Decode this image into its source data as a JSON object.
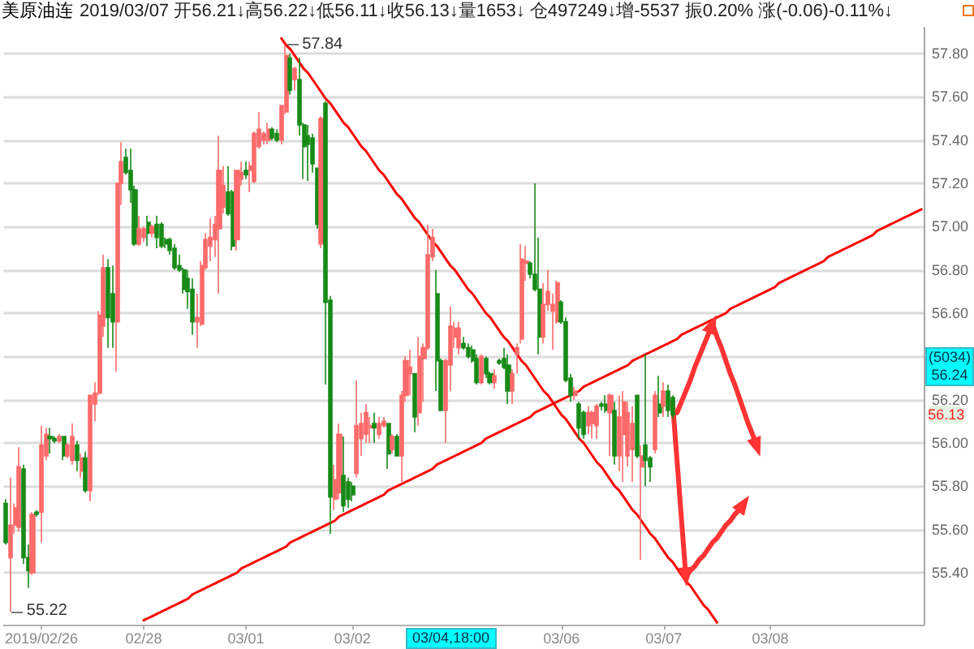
{
  "chart_data": {
    "type": "candlestick",
    "title": "美原油连",
    "subtitle": "2019/03/07 开56.21↓高56.22↓低56.11↓收56.13↓量1653↓ 仓497249↓增-5537 振0.20% 涨(-0.06)-0.11%↓",
    "categories": [
      null,
      null,
      null,
      null,
      null,
      null,
      null,
      null,
      "2019/02/26",
      null,
      null,
      null,
      null,
      null,
      null,
      null,
      null,
      null,
      null,
      null,
      null,
      null,
      null,
      null,
      null,
      null,
      null,
      null,
      null,
      null,
      null,
      "02/28",
      null,
      null,
      null,
      null,
      null,
      null,
      null,
      null,
      null,
      null,
      null,
      null,
      null,
      null,
      null,
      null,
      null,
      null,
      null,
      null,
      null,
      null,
      "03/01",
      null,
      null,
      null,
      null,
      null,
      null,
      null,
      null,
      null,
      null,
      null,
      null,
      null,
      null,
      null,
      null,
      null,
      null,
      null,
      null,
      null,
      null,
      null,
      "03/02",
      null,
      null,
      null,
      null,
      null,
      null,
      null,
      null,
      null,
      null,
      null,
      null,
      null,
      null,
      null,
      null,
      null,
      null,
      null,
      null,
      null,
      null,
      null,
      null,
      null,
      null,
      null,
      null,
      null,
      null,
      null,
      null,
      null,
      null,
      null,
      null,
      null,
      null,
      null,
      null,
      null,
      null,
      null,
      null,
      null,
      null,
      "03/06",
      null,
      null,
      null,
      null,
      null,
      null,
      null,
      null,
      null,
      null,
      null,
      null,
      null,
      null,
      null,
      null,
      null,
      null,
      null,
      null,
      null,
      null,
      "03/07",
      null,
      null,
      null,
      null,
      null,
      null,
      null,
      null,
      null,
      null,
      null,
      null,
      null,
      null,
      null,
      null,
      null,
      null,
      null,
      null,
      null,
      null,
      null,
      "03/08",
      null,
      null,
      null,
      null,
      null,
      null,
      null,
      null,
      null,
      null,
      null,
      null,
      null,
      null,
      null,
      null,
      null,
      null,
      null,
      null,
      null,
      null,
      null,
      null,
      null,
      null,
      null,
      null,
      null,
      null,
      null,
      null,
      null,
      null
    ],
    "ohlc": [
      [
        55.72,
        55.74,
        55.53,
        55.54
      ],
      [
        55.47,
        55.84,
        55.22,
        55.62
      ],
      [
        55.62,
        55.72,
        55.58,
        55.7
      ],
      [
        55.61,
        55.98,
        55.59,
        55.89
      ],
      [
        55.88,
        55.9,
        55.44,
        55.47
      ],
      [
        55.47,
        55.53,
        55.33,
        55.41
      ],
      [
        55.4,
        55.68,
        55.39,
        55.67
      ],
      [
        55.68,
        55.69,
        55.66,
        55.67
      ],
      [
        55.68,
        56.08,
        55.54,
        55.99
      ],
      [
        55.94,
        56.07,
        55.92,
        56.04
      ],
      [
        56.03,
        56.07,
        55.95,
        56.02
      ],
      [
        56.02,
        56.03,
        56.0,
        56.01
      ],
      [
        56.01,
        56.04,
        56.0,
        56.03
      ],
      [
        56.03,
        56.03,
        55.92,
        55.94
      ],
      [
        55.94,
        56.0,
        55.93,
        55.99
      ],
      [
        55.92,
        56.09,
        55.9,
        56.03
      ],
      [
        55.99,
        56.01,
        55.87,
        55.92
      ],
      [
        55.87,
        55.95,
        55.84,
        55.93
      ],
      [
        55.93,
        55.96,
        55.77,
        55.78
      ],
      [
        55.78,
        56.22,
        55.73,
        56.22
      ],
      [
        56.18,
        56.28,
        56.1,
        56.23
      ],
      [
        56.23,
        56.61,
        56.22,
        56.59
      ],
      [
        56.54,
        56.87,
        56.49,
        56.81
      ],
      [
        56.81,
        56.85,
        56.44,
        56.58
      ],
      [
        56.69,
        56.82,
        56.44,
        56.56
      ],
      [
        56.56,
        57.2,
        56.33,
        57.2
      ],
      [
        57.2,
        57.39,
        57.1,
        57.3
      ],
      [
        57.32,
        57.36,
        57.24,
        57.25
      ],
      [
        57.26,
        57.36,
        57.11,
        57.17
      ],
      [
        57.17,
        57.19,
        56.91,
        56.92
      ],
      [
        56.92,
        57.05,
        56.91,
        56.99
      ],
      [
        56.95,
        57.0,
        56.93,
        56.99
      ],
      [
        57.02,
        57.05,
        56.91,
        56.97
      ],
      [
        56.97,
        57.01,
        56.95,
        57.0
      ],
      [
        57.01,
        57.05,
        56.9,
        56.95
      ],
      [
        57.01,
        57.02,
        56.9,
        56.91
      ],
      [
        56.94,
        56.95,
        56.9,
        56.92
      ],
      [
        56.94,
        56.95,
        56.87,
        56.89
      ],
      [
        56.9,
        56.92,
        56.8,
        56.81
      ],
      [
        56.82,
        56.87,
        56.79,
        56.8
      ],
      [
        56.8,
        56.81,
        56.69,
        56.71
      ],
      [
        56.76,
        56.8,
        56.62,
        56.7
      ],
      [
        56.71,
        56.76,
        56.5,
        56.56
      ],
      [
        56.56,
        56.69,
        56.44,
        56.58
      ],
      [
        56.55,
        56.84,
        56.54,
        56.82
      ],
      [
        56.81,
        56.97,
        56.8,
        56.94
      ],
      [
        56.91,
        57.04,
        56.84,
        56.95
      ],
      [
        56.94,
        57.05,
        56.86,
        57.01
      ],
      [
        56.99,
        57.42,
        56.69,
        57.26
      ],
      [
        57.09,
        57.28,
        57.06,
        57.19
      ],
      [
        57.16,
        57.28,
        57.05,
        57.06
      ],
      [
        57.16,
        57.17,
        56.89,
        56.91
      ],
      [
        56.94,
        57.26,
        56.89,
        57.26
      ],
      [
        57.22,
        57.3,
        57.19,
        57.25
      ],
      [
        57.26,
        57.3,
        57.22,
        57.24
      ],
      [
        57.26,
        57.3,
        57.16,
        57.28
      ],
      [
        57.21,
        57.44,
        57.2,
        57.43
      ],
      [
        57.37,
        57.53,
        57.36,
        57.45
      ],
      [
        57.4,
        57.44,
        57.38,
        57.43
      ],
      [
        57.4,
        57.48,
        57.38,
        57.45
      ],
      [
        57.45,
        57.46,
        57.4,
        57.41
      ],
      [
        57.43,
        57.45,
        57.39,
        57.4
      ],
      [
        57.4,
        57.56,
        57.38,
        57.56
      ],
      [
        57.53,
        57.84,
        57.52,
        57.79
      ],
      [
        57.78,
        57.8,
        57.61,
        57.63
      ],
      [
        57.68,
        57.74,
        57.63,
        57.73
      ],
      [
        57.68,
        57.78,
        57.42,
        57.47
      ],
      [
        57.47,
        57.48,
        57.22,
        57.37
      ],
      [
        57.42,
        57.47,
        57.21,
        57.38
      ],
      [
        57.41,
        57.43,
        57.25,
        57.29
      ],
      [
        57.27,
        57.27,
        56.99,
        57.01
      ],
      [
        56.92,
        57.51,
        56.9,
        57.5
      ],
      [
        57.57,
        57.58,
        56.27,
        56.65
      ],
      [
        56.66,
        56.68,
        55.58,
        55.75
      ],
      [
        55.74,
        55.9,
        55.69,
        55.83
      ],
      [
        55.77,
        56.09,
        55.74,
        56.04
      ],
      [
        55.85,
        56.03,
        55.68,
        55.71
      ],
      [
        55.82,
        55.84,
        55.7,
        55.74
      ],
      [
        55.8,
        55.82,
        55.73,
        55.76
      ],
      [
        55.86,
        56.29,
        55.84,
        56.08
      ],
      [
        56.02,
        56.14,
        55.94,
        56.09
      ],
      [
        56.04,
        56.18,
        56.0,
        56.14
      ],
      [
        56.07,
        56.12,
        56.0,
        56.08
      ],
      [
        56.09,
        56.14,
        56.0,
        56.07
      ],
      [
        56.04,
        56.12,
        56.02,
        56.09
      ],
      [
        56.08,
        56.12,
        56.07,
        56.1
      ],
      [
        56.09,
        56.09,
        55.88,
        55.95
      ],
      [
        55.97,
        56.04,
        55.95,
        56.03
      ],
      [
        56.03,
        56.04,
        55.94,
        55.94
      ],
      [
        55.94,
        56.24,
        55.82,
        56.22
      ],
      [
        56.22,
        56.4,
        56.19,
        56.38
      ],
      [
        56.32,
        56.43,
        56.22,
        56.35
      ],
      [
        56.32,
        56.32,
        56.05,
        56.12
      ],
      [
        56.14,
        56.49,
        56.08,
        56.4
      ],
      [
        56.39,
        56.46,
        56.19,
        56.44
      ],
      [
        56.44,
        57.01,
        56.43,
        56.87
      ],
      [
        56.86,
        56.99,
        56.84,
        56.95
      ],
      [
        56.69,
        56.8,
        56.24,
        56.38
      ],
      [
        56.38,
        56.39,
        56.15,
        56.15
      ],
      [
        56.15,
        56.39,
        56.0,
        56.38
      ],
      [
        56.36,
        56.63,
        56.24,
        56.54
      ],
      [
        56.49,
        56.56,
        56.44,
        56.53
      ],
      [
        56.44,
        56.56,
        56.41,
        56.53
      ],
      [
        56.46,
        56.49,
        56.43,
        56.44
      ],
      [
        56.44,
        56.46,
        56.39,
        56.4
      ],
      [
        56.43,
        56.45,
        56.37,
        56.38
      ],
      [
        56.39,
        56.41,
        56.27,
        56.28
      ],
      [
        56.28,
        56.41,
        56.27,
        56.4
      ],
      [
        56.39,
        56.4,
        56.3,
        56.32
      ],
      [
        56.32,
        56.33,
        56.27,
        56.28
      ],
      [
        56.28,
        56.34,
        56.25,
        56.31
      ],
      [
        56.38,
        56.39,
        56.36,
        56.37
      ],
      [
        56.39,
        56.44,
        56.34,
        56.35
      ],
      [
        56.36,
        56.41,
        56.18,
        56.24
      ],
      [
        56.24,
        56.34,
        56.18,
        56.32
      ],
      [
        56.41,
        56.46,
        56.32,
        56.44
      ],
      [
        56.48,
        56.92,
        56.46,
        56.85
      ],
      [
        56.83,
        56.91,
        56.75,
        56.84
      ],
      [
        56.83,
        56.84,
        56.76,
        56.78
      ],
      [
        56.78,
        57.2,
        56.7,
        56.71
      ],
      [
        56.71,
        56.95,
        56.41,
        56.49
      ],
      [
        56.49,
        56.74,
        56.46,
        56.64
      ],
      [
        56.64,
        56.8,
        56.61,
        56.7
      ],
      [
        56.61,
        56.69,
        56.43,
        56.64
      ],
      [
        56.56,
        56.75,
        56.55,
        56.74
      ],
      [
        56.65,
        56.66,
        56.55,
        56.56
      ],
      [
        56.56,
        56.58,
        56.28,
        56.29
      ],
      [
        56.3,
        56.32,
        56.19,
        56.22
      ],
      [
        56.22,
        56.26,
        56.2,
        56.24
      ],
      [
        56.18,
        56.19,
        56.02,
        56.07
      ],
      [
        56.14,
        56.15,
        56.02,
        56.04
      ],
      [
        56.08,
        56.17,
        56.04,
        56.14
      ],
      [
        56.09,
        56.15,
        56.02,
        56.14
      ],
      [
        56.08,
        56.18,
        56.02,
        56.17
      ],
      [
        56.18,
        56.19,
        56.15,
        56.17
      ],
      [
        56.18,
        56.22,
        56.14,
        56.15
      ],
      [
        56.14,
        56.23,
        55.94,
        56.22
      ],
      [
        56.15,
        56.19,
        55.9,
        55.94
      ],
      [
        55.94,
        56.22,
        55.87,
        56.12
      ],
      [
        56.04,
        56.24,
        55.82,
        56.19
      ],
      [
        55.94,
        56.19,
        55.89,
        56.14
      ],
      [
        55.97,
        56.17,
        55.82,
        56.09
      ],
      [
        56.22,
        56.22,
        55.93,
        55.94
      ],
      [
        55.89,
        55.99,
        55.46,
        55.94
      ],
      [
        55.99,
        56.41,
        55.8,
        55.92
      ],
      [
        55.93,
        55.94,
        55.82,
        55.89
      ],
      [
        55.97,
        56.24,
        55.95,
        56.22
      ],
      [
        56.18,
        56.31,
        56.12,
        56.14
      ],
      [
        56.17,
        56.28,
        56.12,
        56.24
      ],
      [
        56.24,
        56.27,
        56.12,
        56.15
      ],
      [
        56.21,
        56.22,
        56.11,
        56.13
      ],
      null,
      null,
      null,
      null,
      null,
      null,
      null,
      null,
      null,
      null,
      null,
      null,
      null,
      null,
      null,
      null,
      null,
      null,
      null,
      null,
      null,
      null,
      null,
      null,
      null,
      null,
      null,
      null,
      null,
      null,
      null,
      null,
      null,
      null,
      null,
      null,
      null,
      null,
      null,
      null,
      null,
      null,
      null,
      null,
      null,
      null,
      null,
      null,
      null,
      null,
      null,
      null,
      null,
      null,
      null,
      null
    ],
    "value_labels": [
      null,
      "55.22",
      null,
      null,
      null,
      null,
      null,
      null,
      null,
      null,
      null,
      null,
      null,
      null,
      null,
      null,
      null,
      null,
      null,
      null,
      null,
      null,
      null,
      null,
      null,
      null,
      null,
      null,
      null,
      null,
      null,
      null,
      null,
      null,
      null,
      null,
      null,
      null,
      null,
      null,
      null,
      null,
      null,
      null,
      null,
      null,
      null,
      null,
      null,
      null,
      null,
      null,
      null,
      null,
      null,
      null,
      null,
      null,
      null,
      null,
      null,
      null,
      null,
      "57.84",
      null,
      null,
      null,
      null,
      null,
      null,
      null,
      null,
      null,
      null,
      null,
      null,
      null,
      null,
      null,
      null,
      null,
      null,
      null,
      null,
      null,
      null,
      null,
      null,
      null,
      null,
      null,
      null,
      null,
      null,
      null,
      null,
      null,
      null,
      null,
      null,
      null,
      null,
      null,
      null,
      null,
      null,
      null,
      null,
      null,
      null,
      null,
      null,
      null,
      null,
      null,
      null,
      null,
      null,
      null,
      null,
      null,
      null,
      null,
      null,
      null,
      null,
      null,
      null,
      null,
      null,
      null,
      null,
      null,
      null,
      null,
      null,
      null,
      null,
      null,
      null,
      null,
      null,
      null,
      null,
      null,
      null,
      null,
      null,
      null,
      null,
      null,
      null,
      null,
      null,
      null,
      null,
      null,
      null,
      null,
      null,
      null,
      null,
      null,
      null,
      null,
      null,
      null,
      null,
      null,
      null,
      null,
      null,
      null,
      null,
      null,
      null,
      null,
      null,
      null,
      null,
      null,
      null,
      null,
      null,
      null,
      null,
      null,
      null,
      null,
      null,
      null,
      null,
      null,
      null,
      null,
      null,
      null,
      null,
      null,
      null,
      null,
      null,
      null,
      null,
      null,
      null,
      null
    ],
    "colors": [
      "#178a17",
      "#ff6a6a",
      "#ff6a6a",
      "#ff6a6a",
      "#178a17",
      "#178a17",
      "#ff6a6a",
      "#178a17",
      "#ff6a6a",
      "#ff6a6a",
      "#178a17",
      "#178a17",
      "#ff6a6a",
      "#178a17",
      "#ff6a6a",
      "#ff6a6a",
      "#178a17",
      "#ff6a6a",
      "#178a17",
      "#ff6a6a",
      "#ff6a6a",
      "#ff6a6a",
      "#ff6a6a",
      "#178a17",
      "#178a17",
      "#ff6a6a",
      "#ff6a6a",
      "#178a17",
      "#178a17",
      "#178a17",
      "#ff6a6a",
      "#ff6a6a",
      "#178a17",
      "#ff6a6a",
      "#178a17",
      "#178a17",
      "#178a17",
      "#178a17",
      "#178a17",
      "#178a17",
      "#178a17",
      "#178a17",
      "#178a17",
      "#ff6a6a",
      "#ff6a6a",
      "#ff6a6a",
      "#ff6a6a",
      "#ff6a6a",
      "#ff6a6a",
      "#ff6a6a",
      "#178a17",
      "#178a17",
      "#ff6a6a",
      "#ff6a6a",
      "#178a17",
      "#ff6a6a",
      "#ff6a6a",
      "#ff6a6a",
      "#ff6a6a",
      "#ff6a6a",
      "#178a17",
      "#178a17",
      "#ff6a6a",
      "#ff6a6a",
      "#178a17",
      "#ff6a6a",
      "#178a17",
      "#178a17",
      "#178a17",
      "#178a17",
      "#178a17",
      "#ff6a6a",
      "#178a17",
      "#178a17",
      "#ff6a6a",
      "#ff6a6a",
      "#178a17",
      "#178a17",
      "#178a17",
      "#ff6a6a",
      "#ff6a6a",
      "#ff6a6a",
      "#ff6a6a",
      "#178a17",
      "#ff6a6a",
      "#ff6a6a",
      "#178a17",
      "#ff6a6a",
      "#178a17",
      "#ff6a6a",
      "#ff6a6a",
      "#ff6a6a",
      "#178a17",
      "#ff6a6a",
      "#ff6a6a",
      "#ff6a6a",
      "#ff6a6a",
      "#178a17",
      "#178a17",
      "#ff6a6a",
      "#ff6a6a",
      "#ff6a6a",
      "#ff6a6a",
      "#178a17",
      "#178a17",
      "#178a17",
      "#178a17",
      "#ff6a6a",
      "#178a17",
      "#178a17",
      "#ff6a6a",
      "#178a17",
      "#178a17",
      "#178a17",
      "#ff6a6a",
      "#ff6a6a",
      "#ff6a6a",
      "#ff6a6a",
      "#178a17",
      "#178a17",
      "#178a17",
      "#ff6a6a",
      "#ff6a6a",
      "#ff6a6a",
      "#ff6a6a",
      "#178a17",
      "#178a17",
      "#178a17",
      "#ff6a6a",
      "#178a17",
      "#178a17",
      "#ff6a6a",
      "#ff6a6a",
      "#ff6a6a",
      "#178a17",
      "#178a17",
      "#ff6a6a",
      "#178a17",
      "#ff6a6a",
      "#ff6a6a",
      "#ff6a6a",
      "#ff6a6a",
      "#178a17",
      "#ff6a6a",
      "#178a17",
      "#178a17",
      "#ff6a6a",
      "#178a17",
      "#ff6a6a",
      "#178a17",
      "#178a17",
      null,
      null,
      null,
      null,
      null,
      null,
      null,
      null,
      null,
      null,
      null,
      null,
      null,
      null,
      null,
      null,
      null,
      null,
      null,
      null,
      null,
      null,
      null,
      null,
      null,
      null,
      null,
      null,
      null,
      null,
      null,
      null,
      null,
      null,
      null,
      null,
      null,
      null,
      null,
      null,
      null,
      null,
      null,
      null,
      null,
      null,
      null,
      null,
      null,
      null,
      null,
      null,
      null,
      null,
      null,
      null
    ],
    "series": [
      {
        "type": "line",
        "color": "#ff0000",
        "values": [
          null,
          null,
          null,
          null,
          null,
          null,
          null,
          null,
          null,
          null,
          null,
          null,
          null,
          null,
          null,
          null,
          null,
          null,
          null,
          null,
          null,
          null,
          null,
          null,
          null,
          null,
          null,
          null,
          null,
          null,
          null,
          null,
          null,
          null,
          null,
          null,
          null,
          null,
          null,
          null,
          null,
          null,
          null,
          null,
          null,
          null,
          null,
          null,
          null,
          null,
          null,
          null,
          null,
          null,
          null,
          null,
          null,
          null,
          null,
          null,
          null,
          null,
          57.87,
          57.84,
          57.82,
          57.79,
          57.76,
          57.73,
          57.71,
          57.68,
          57.65,
          57.62,
          57.59,
          57.57,
          57.54,
          57.51,
          57.48,
          57.46,
          57.43,
          57.4,
          57.37,
          57.35,
          57.32,
          57.29,
          57.26,
          57.24,
          57.21,
          57.18,
          57.15,
          57.13,
          57.1,
          57.07,
          57.04,
          57.02,
          56.99,
          56.96,
          56.93,
          56.91,
          56.88,
          56.85,
          56.82,
          56.8,
          56.77,
          56.74,
          56.71,
          56.69,
          56.66,
          56.63,
          56.6,
          56.58,
          56.55,
          56.52,
          56.49,
          56.47,
          56.44,
          56.41,
          56.38,
          56.36,
          56.33,
          56.3,
          56.27,
          56.24,
          56.22,
          56.19,
          56.16,
          56.13,
          56.11,
          56.08,
          56.05,
          56.02,
          56.0,
          55.97,
          55.94,
          55.91,
          55.89,
          55.86,
          55.83,
          55.8,
          55.78,
          55.75,
          55.72,
          55.69,
          55.67,
          55.64,
          55.61,
          55.58,
          55.56,
          55.53,
          55.5,
          55.47,
          55.45,
          55.42,
          55.39,
          55.36,
          55.34,
          55.31,
          55.28,
          55.25,
          55.23,
          55.2,
          55.17,
          null,
          null,
          null,
          null,
          null,
          null,
          null,
          null,
          null,
          null,
          null,
          null,
          null,
          null,
          null,
          null,
          null,
          null,
          null,
          null,
          null,
          null,
          null,
          null,
          null,
          null,
          null,
          null,
          null,
          null,
          null,
          null,
          null,
          null,
          null,
          null,
          null,
          null,
          null,
          null,
          null,
          null,
          null,
          null,
          null,
          null
        ]
      },
      {
        "type": "line",
        "color": "#ff0000",
        "values": [
          null,
          null,
          null,
          null,
          null,
          null,
          null,
          null,
          null,
          null,
          null,
          null,
          null,
          null,
          null,
          null,
          null,
          null,
          null,
          null,
          null,
          null,
          null,
          null,
          null,
          null,
          null,
          null,
          null,
          null,
          null,
          55.18,
          55.19,
          55.2,
          55.21,
          55.22,
          55.23,
          55.24,
          55.25,
          55.26,
          55.27,
          55.28,
          55.3,
          55.31,
          55.32,
          55.33,
          55.34,
          55.35,
          55.36,
          55.37,
          55.38,
          55.39,
          55.4,
          55.42,
          55.43,
          55.44,
          55.45,
          55.46,
          55.47,
          55.48,
          55.49,
          55.5,
          55.51,
          55.52,
          55.54,
          55.55,
          55.56,
          55.57,
          55.58,
          55.59,
          55.6,
          55.61,
          55.62,
          55.63,
          55.64,
          55.66,
          55.67,
          55.68,
          55.69,
          55.7,
          55.71,
          55.72,
          55.73,
          55.74,
          55.75,
          55.76,
          55.78,
          55.79,
          55.8,
          55.81,
          55.82,
          55.83,
          55.84,
          55.85,
          55.86,
          55.87,
          55.88,
          55.9,
          55.91,
          55.92,
          55.93,
          55.94,
          55.95,
          55.96,
          55.97,
          55.98,
          55.99,
          56.0,
          56.02,
          56.03,
          56.04,
          56.05,
          56.06,
          56.07,
          56.08,
          56.09,
          56.1,
          56.11,
          56.12,
          56.14,
          56.15,
          56.16,
          56.17,
          56.18,
          56.19,
          56.2,
          56.21,
          56.22,
          56.23,
          56.24,
          56.26,
          56.27,
          56.28,
          56.29,
          56.3,
          56.31,
          56.32,
          56.33,
          56.34,
          56.35,
          56.36,
          56.38,
          56.39,
          56.4,
          56.41,
          56.42,
          56.43,
          56.44,
          56.45,
          56.46,
          56.47,
          56.48,
          56.5,
          56.51,
          56.52,
          56.53,
          56.54,
          56.55,
          56.56,
          56.57,
          56.58,
          56.59,
          56.6,
          56.62,
          56.63,
          56.64,
          56.65,
          56.66,
          56.67,
          56.68,
          56.69,
          56.7,
          56.71,
          56.72,
          56.74,
          56.75,
          56.76,
          56.77,
          56.78,
          56.79,
          56.8,
          56.81,
          56.82,
          56.83,
          56.84,
          56.86,
          56.87,
          56.88,
          56.89,
          56.9,
          56.91,
          56.92,
          56.93,
          56.94,
          56.95,
          56.96,
          56.98,
          56.99,
          57.0,
          57.01,
          57.02,
          57.03,
          57.04,
          57.05,
          57.06,
          57.07,
          57.08
        ]
      },
      {
        "type": "line",
        "color": "#ff3333",
        "values": [
          null,
          null,
          null,
          null,
          null,
          null,
          null,
          null,
          null,
          null,
          null,
          null,
          null,
          null,
          null,
          null,
          null,
          null,
          null,
          null,
          null,
          null,
          null,
          null,
          null,
          null,
          null,
          null,
          null,
          null,
          null,
          null,
          null,
          null,
          null,
          null,
          null,
          null,
          null,
          null,
          null,
          null,
          null,
          null,
          null,
          null,
          null,
          null,
          null,
          null,
          null,
          null,
          null,
          null,
          null,
          null,
          null,
          null,
          null,
          null,
          null,
          null,
          null,
          null,
          null,
          null,
          null,
          null,
          null,
          null,
          null,
          null,
          null,
          null,
          null,
          null,
          null,
          null,
          null,
          null,
          null,
          null,
          null,
          null,
          null,
          null,
          null,
          null,
          null,
          null,
          null,
          null,
          null,
          null,
          null,
          null,
          null,
          null,
          null,
          null,
          null,
          null,
          null,
          null,
          null,
          null,
          null,
          null,
          null,
          null,
          null,
          null,
          null,
          null,
          null,
          null,
          null,
          null,
          null,
          null,
          null,
          null,
          null,
          null,
          null,
          null,
          null,
          null,
          null,
          null,
          null,
          null,
          null,
          null,
          null,
          null,
          null,
          null,
          null,
          null,
          null,
          null,
          null,
          null,
          null,
          null,
          null,
          null,
          null,
          null,
          null,
          56.14,
          56.19,
          56.24,
          56.29,
          56.35,
          56.4,
          56.45,
          56.5,
          56.55,
          56.49,
          56.44,
          56.38,
          56.32,
          56.27,
          56.21,
          56.15,
          56.09,
          56.04,
          55.98,
          null,
          null,
          null,
          null,
          null,
          null,
          null,
          null,
          null,
          null,
          null,
          null,
          null,
          null,
          null,
          null,
          null,
          null,
          null,
          null,
          null,
          null,
          null,
          null,
          null,
          null,
          null,
          null,
          null,
          null,
          null,
          null,
          null,
          null,
          null,
          null,
          null
        ]
      },
      {
        "type": "line",
        "color": "#ff3333",
        "values": [
          null,
          null,
          null,
          null,
          null,
          null,
          null,
          null,
          null,
          null,
          null,
          null,
          null,
          null,
          null,
          null,
          null,
          null,
          null,
          null,
          null,
          null,
          null,
          null,
          null,
          null,
          null,
          null,
          null,
          null,
          null,
          null,
          null,
          null,
          null,
          null,
          null,
          null,
          null,
          null,
          null,
          null,
          null,
          null,
          null,
          null,
          null,
          null,
          null,
          null,
          null,
          null,
          null,
          null,
          null,
          null,
          null,
          null,
          null,
          null,
          null,
          null,
          null,
          null,
          null,
          null,
          null,
          null,
          null,
          null,
          null,
          null,
          null,
          null,
          null,
          null,
          null,
          null,
          null,
          null,
          null,
          null,
          null,
          null,
          null,
          null,
          null,
          null,
          null,
          null,
          null,
          null,
          null,
          null,
          null,
          null,
          null,
          null,
          null,
          null,
          null,
          null,
          null,
          null,
          null,
          null,
          null,
          null,
          null,
          null,
          null,
          null,
          null,
          null,
          null,
          null,
          null,
          null,
          null,
          null,
          null,
          null,
          null,
          null,
          null,
          null,
          null,
          null,
          null,
          null,
          null,
          null,
          null,
          null,
          null,
          null,
          null,
          null,
          null,
          null,
          null,
          null,
          null,
          null,
          null,
          null,
          null,
          null,
          null,
          null,
          56.19,
          55.92,
          55.65,
          55.38,
          55.41,
          55.43,
          55.46,
          55.48,
          55.51,
          55.54,
          55.56,
          55.59,
          55.62,
          55.64,
          55.67,
          55.69,
          55.72,
          null,
          null,
          null,
          null,
          null,
          null,
          null,
          null,
          null,
          null,
          null,
          null,
          null,
          null,
          null,
          null,
          null,
          null,
          null,
          null,
          null,
          null,
          null,
          null,
          null,
          null,
          null,
          null,
          null,
          null,
          null,
          null,
          null,
          null,
          null,
          null,
          null,
          null,
          null,
          null
        ]
      }
    ],
    "ylim": [
      55.16,
      57.92
    ],
    "yticks": [
      {
        "value": 55.4,
        "label": "55.40"
      },
      {
        "value": 55.6,
        "label": "55.60"
      },
      {
        "value": 55.8,
        "label": "55.80"
      },
      {
        "value": 56.0,
        "label": "56.00"
      },
      {
        "value": 56.2,
        "label": "56.20"
      },
      {
        "value": 56.4,
        "label": null
      },
      {
        "value": 56.6,
        "label": "56.60"
      },
      {
        "value": 56.8,
        "label": "56.80"
      },
      {
        "value": 57.0,
        "label": "57.00"
      },
      {
        "value": 57.2,
        "label": "57.20"
      },
      {
        "value": 57.4,
        "label": "57.40"
      },
      {
        "value": 57.6,
        "label": "57.60"
      },
      {
        "value": 57.8,
        "label": "57.80"
      }
    ],
    "grid": "y",
    "annotations": [
      "(5034)\n56.24",
      {
        "text": "56.13",
        "y": 56.13
      },
      "03/04,18:00"
    ]
  }
}
